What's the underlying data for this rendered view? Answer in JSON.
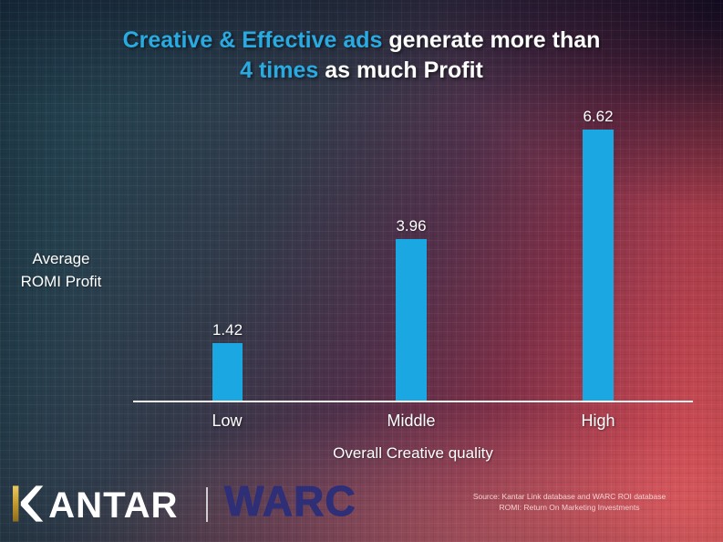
{
  "title": {
    "line1_highlight": "Creative & Effective ads",
    "line1_rest": " generate more than",
    "line2_highlight": "4 times",
    "line2_rest": " as much Profit",
    "highlight_color": "#29abe2",
    "text_color": "#ffffff"
  },
  "chart_data": {
    "type": "bar",
    "title": "Creative & Effective ads generate more than 4 times as much Profit",
    "categories": [
      "Low",
      "Middle",
      "High"
    ],
    "values": [
      1.42,
      3.96,
      6.62
    ],
    "xlabel": "Overall Creative quality",
    "ylabel": "Average ROMI Profit",
    "ylabel_line1": "Average",
    "ylabel_line2": "ROMI Profit",
    "ylim": [
      0,
      7
    ],
    "grid": false,
    "legend": false,
    "bar_color": "#1ba8e2",
    "value_label_color": "#ffffff",
    "axis_line_color": "#f4f2f0"
  },
  "footer": {
    "kantar_brand": "KANTAR",
    "kantar_text_rest": "ANTAR",
    "kantar_gold": "#c49a2e",
    "warc_brand": "WARC",
    "warc_color": "#2f2f78",
    "source_line1": "Source: Kantar Link database and WARC ROI database",
    "source_line2": "ROMI: Return On Marketing Investments"
  },
  "background": {
    "top_left": "#1e3c4a",
    "top_right": "#1e1b2d",
    "bottom_left": "#333d44",
    "bottom_right": "#ee5a5e",
    "grid_texture": true
  }
}
